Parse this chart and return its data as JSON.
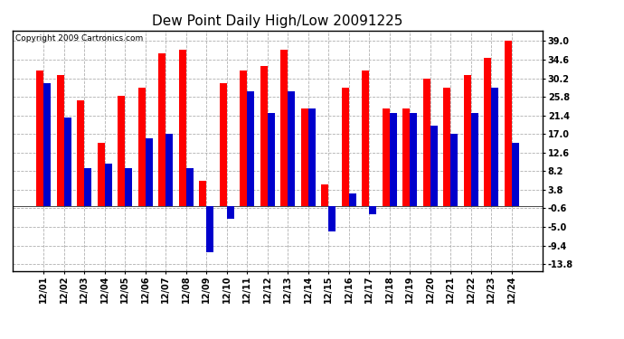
{
  "title": "Dew Point Daily High/Low 20091225",
  "copyright": "Copyright 2009 Cartronics.com",
  "dates": [
    "12/01",
    "12/02",
    "12/03",
    "12/04",
    "12/05",
    "12/06",
    "12/07",
    "12/08",
    "12/09",
    "12/10",
    "12/11",
    "12/12",
    "12/13",
    "12/14",
    "12/15",
    "12/16",
    "12/17",
    "12/18",
    "12/19",
    "12/20",
    "12/21",
    "12/22",
    "12/23",
    "12/24"
  ],
  "highs": [
    32,
    31,
    25,
    15,
    26,
    28,
    36,
    37,
    6,
    29,
    32,
    33,
    37,
    23,
    5,
    28,
    32,
    23,
    23,
    30,
    28,
    31,
    35,
    39
  ],
  "lows": [
    29,
    21,
    9,
    10,
    9,
    16,
    17,
    9,
    -11,
    -3,
    27,
    22,
    27,
    23,
    -6,
    3,
    -2,
    22,
    22,
    19,
    17,
    22,
    28,
    15
  ],
  "bar_color_high": "#ff0000",
  "bar_color_low": "#0000cc",
  "background_color": "#ffffff",
  "plot_bg_color": "#ffffff",
  "grid_color": "#b0b0b0",
  "yticks": [
    39.0,
    34.6,
    30.2,
    25.8,
    21.4,
    17.0,
    12.6,
    8.2,
    3.8,
    -0.6,
    -5.0,
    -9.4,
    -13.8
  ],
  "ylim": [
    -15.5,
    41.5
  ],
  "title_fontsize": 11,
  "tick_fontsize": 7,
  "copyright_fontsize": 6.5,
  "bar_width": 0.35
}
